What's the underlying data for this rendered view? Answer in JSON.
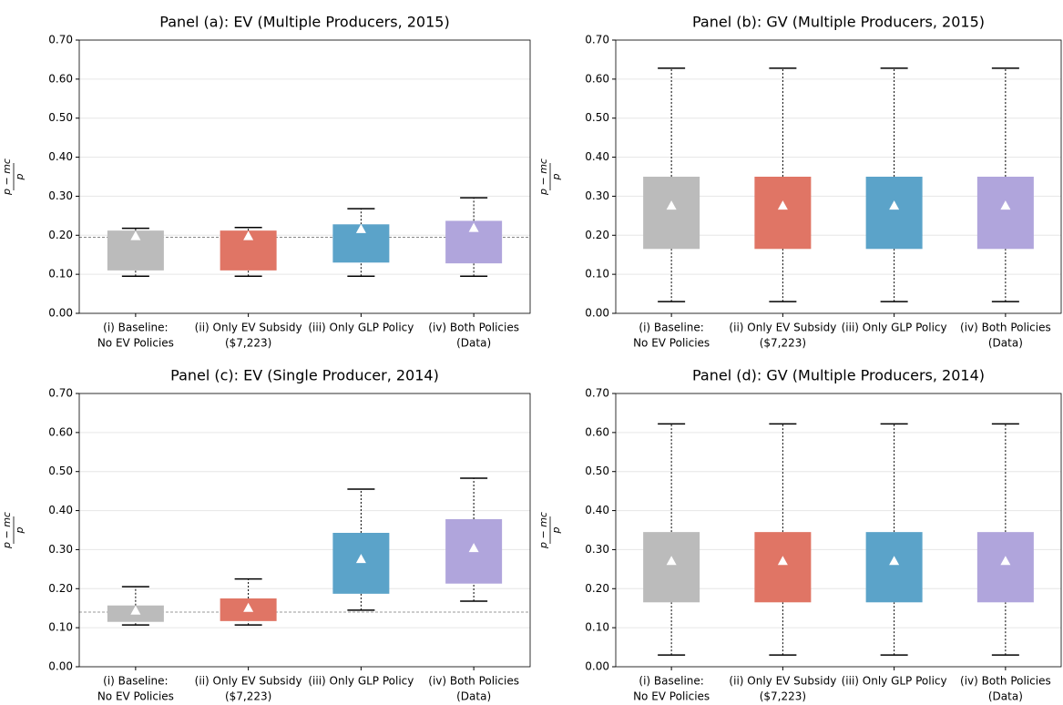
{
  "chart_data": [
    {
      "type": "box",
      "title": "Panel (a): EV (Multiple Producers, 2015)",
      "ylabel": {
        "numerator": "p − mc",
        "denominator": "p"
      },
      "categories": [
        [
          "(i) Baseline:",
          "No EV Policies"
        ],
        [
          "(ii) Only EV Subsidy",
          "($7,223)"
        ],
        [
          "(iii) Only GLP Policy"
        ],
        [
          "(iv) Both Policies",
          "(Data)"
        ]
      ],
      "boxes": [
        {
          "whislo": 0.095,
          "q1": 0.11,
          "q3": 0.212,
          "whishi": 0.218,
          "mean": 0.197,
          "color": "#bbbbbb"
        },
        {
          "whislo": 0.095,
          "q1": 0.11,
          "q3": 0.212,
          "whishi": 0.22,
          "mean": 0.197,
          "color": "#e07565"
        },
        {
          "whislo": 0.095,
          "q1": 0.13,
          "q3": 0.228,
          "whishi": 0.268,
          "mean": 0.215,
          "color": "#5ba3c9"
        },
        {
          "whislo": 0.095,
          "q1": 0.128,
          "q3": 0.237,
          "whishi": 0.296,
          "mean": 0.218,
          "color": "#b0a5dc"
        }
      ],
      "reference_line": 0.195,
      "ylim": [
        0,
        0.7
      ],
      "yticks": [
        {
          "value": 0,
          "label": "0.00"
        },
        {
          "value": 0.1,
          "label": "0.10"
        },
        {
          "value": 0.2,
          "label": "0.20"
        },
        {
          "value": 0.3,
          "label": "0.30"
        },
        {
          "value": 0.4,
          "label": "0.40"
        },
        {
          "value": 0.5,
          "label": "0.50"
        },
        {
          "value": 0.6,
          "label": "0.60"
        },
        {
          "value": 0.7,
          "label": "0.70"
        }
      ],
      "grid": true
    },
    {
      "type": "box",
      "title": "Panel (b): GV (Multiple Producers,  2015)",
      "ylabel": {
        "numerator": "p − mc",
        "denominator": "p"
      },
      "categories": [
        [
          "(i) Baseline:",
          "No EV Policies"
        ],
        [
          "(ii) Only EV Subsidy",
          "($7,223)"
        ],
        [
          "(iii) Only GLP Policy"
        ],
        [
          "(iv) Both Policies",
          "(Data)"
        ]
      ],
      "boxes": [
        {
          "whislo": 0.03,
          "q1": 0.165,
          "q3": 0.35,
          "whishi": 0.628,
          "mean": 0.275,
          "color": "#bbbbbb"
        },
        {
          "whislo": 0.03,
          "q1": 0.165,
          "q3": 0.35,
          "whishi": 0.628,
          "mean": 0.275,
          "color": "#e07565"
        },
        {
          "whislo": 0.03,
          "q1": 0.165,
          "q3": 0.35,
          "whishi": 0.628,
          "mean": 0.275,
          "color": "#5ba3c9"
        },
        {
          "whislo": 0.03,
          "q1": 0.165,
          "q3": 0.35,
          "whishi": 0.628,
          "mean": 0.275,
          "color": "#b0a5dc"
        }
      ],
      "ylim": [
        0,
        0.7
      ],
      "yticks": [
        {
          "value": 0,
          "label": "0.00"
        },
        {
          "value": 0.1,
          "label": "0.10"
        },
        {
          "value": 0.2,
          "label": "0.20"
        },
        {
          "value": 0.3,
          "label": "0.30"
        },
        {
          "value": 0.4,
          "label": "0.40"
        },
        {
          "value": 0.5,
          "label": "0.50"
        },
        {
          "value": 0.6,
          "label": "0.60"
        },
        {
          "value": 0.7,
          "label": "0.70"
        }
      ],
      "grid": true
    },
    {
      "type": "box",
      "title": "Panel (c): EV (Single Producer, 2014)",
      "ylabel": {
        "numerator": "p − mc",
        "denominator": "p"
      },
      "categories": [
        [
          "(i) Baseline:",
          "No EV Policies"
        ],
        [
          "(ii) Only EV Subsidy",
          "($7,223)"
        ],
        [
          "(iii) Only GLP Policy"
        ],
        [
          "(iv) Both Policies",
          "(Data)"
        ]
      ],
      "boxes": [
        {
          "whislo": 0.107,
          "q1": 0.115,
          "q3": 0.157,
          "whishi": 0.205,
          "mean": 0.143,
          "color": "#bbbbbb"
        },
        {
          "whislo": 0.107,
          "q1": 0.117,
          "q3": 0.175,
          "whishi": 0.225,
          "mean": 0.15,
          "color": "#e07565"
        },
        {
          "whislo": 0.145,
          "q1": 0.187,
          "q3": 0.343,
          "whishi": 0.455,
          "mean": 0.275,
          "color": "#5ba3c9"
        },
        {
          "whislo": 0.168,
          "q1": 0.213,
          "q3": 0.378,
          "whishi": 0.483,
          "mean": 0.303,
          "color": "#b0a5dc"
        }
      ],
      "reference_line": 0.14,
      "ylim": [
        0,
        0.7
      ],
      "yticks": [
        {
          "value": 0,
          "label": "0.00"
        },
        {
          "value": 0.1,
          "label": "0.10"
        },
        {
          "value": 0.2,
          "label": "0.20"
        },
        {
          "value": 0.3,
          "label": "0.30"
        },
        {
          "value": 0.4,
          "label": "0.40"
        },
        {
          "value": 0.5,
          "label": "0.50"
        },
        {
          "value": 0.6,
          "label": "0.60"
        },
        {
          "value": 0.7,
          "label": "0.70"
        }
      ],
      "grid": true
    },
    {
      "type": "box",
      "title": "Panel (d): GV (Multiple Producers, 2014)",
      "ylabel": {
        "numerator": "p − mc",
        "denominator": "p"
      },
      "categories": [
        [
          "(i) Baseline:",
          "No EV Policies"
        ],
        [
          "(ii) Only EV Subsidy",
          "($7,223)"
        ],
        [
          "(iii) Only GLP Policy"
        ],
        [
          "(iv) Both Policies",
          "(Data)"
        ]
      ],
      "boxes": [
        {
          "whislo": 0.03,
          "q1": 0.165,
          "q3": 0.345,
          "whishi": 0.622,
          "mean": 0.27,
          "color": "#bbbbbb"
        },
        {
          "whislo": 0.03,
          "q1": 0.165,
          "q3": 0.345,
          "whishi": 0.622,
          "mean": 0.27,
          "color": "#e07565"
        },
        {
          "whislo": 0.03,
          "q1": 0.165,
          "q3": 0.345,
          "whishi": 0.622,
          "mean": 0.27,
          "color": "#5ba3c9"
        },
        {
          "whislo": 0.03,
          "q1": 0.165,
          "q3": 0.345,
          "whishi": 0.622,
          "mean": 0.27,
          "color": "#b0a5dc"
        }
      ],
      "ylim": [
        0,
        0.7
      ],
      "yticks": [
        {
          "value": 0,
          "label": "0.00"
        },
        {
          "value": 0.1,
          "label": "0.10"
        },
        {
          "value": 0.2,
          "label": "0.20"
        },
        {
          "value": 0.3,
          "label": "0.30"
        },
        {
          "value": 0.4,
          "label": "0.40"
        },
        {
          "value": 0.5,
          "label": "0.50"
        },
        {
          "value": 0.6,
          "label": "0.60"
        },
        {
          "value": 0.7,
          "label": "0.70"
        }
      ],
      "grid": true
    }
  ]
}
